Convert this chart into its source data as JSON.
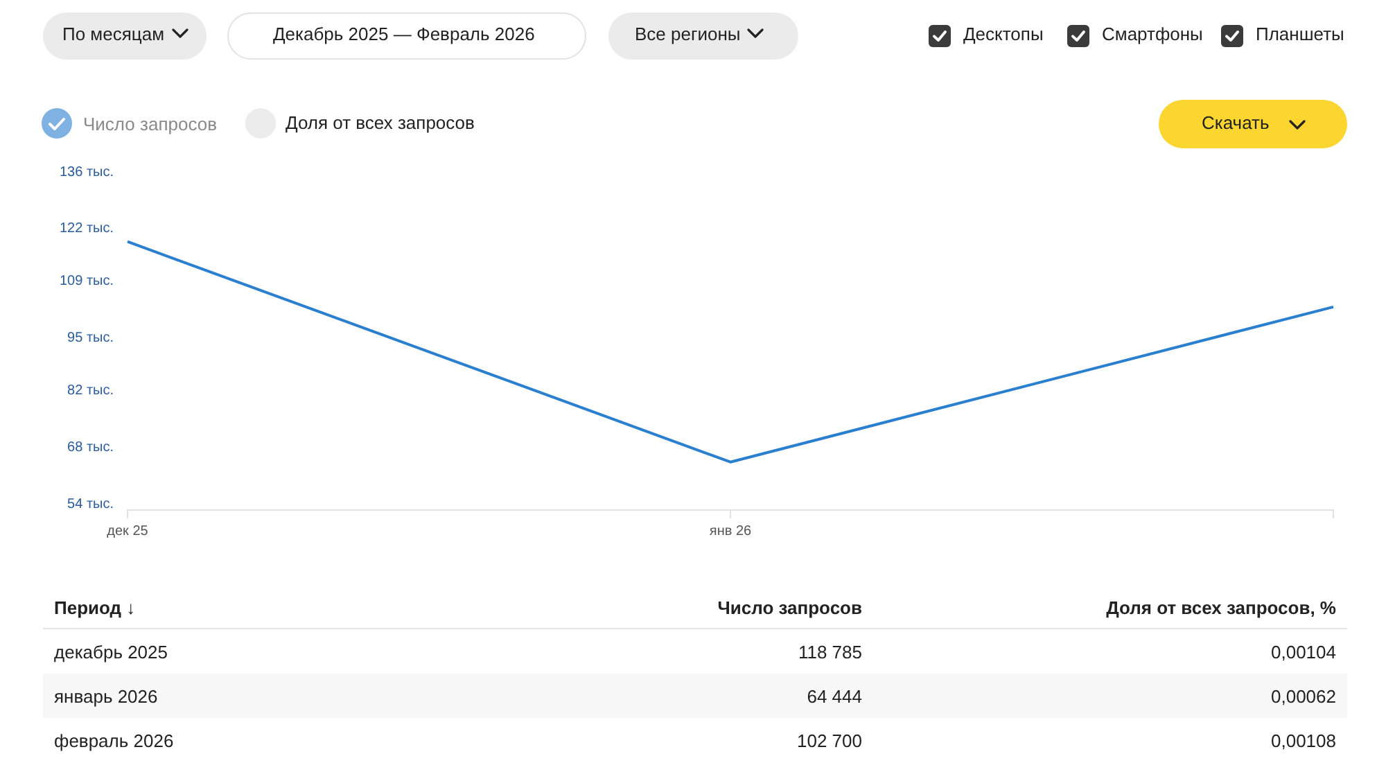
{
  "chart_data": {
    "type": "line",
    "categories": [
      "дек 25",
      "янв 26",
      null
    ],
    "series": [
      {
        "name": "Число запросов",
        "color": "#2b7fcf",
        "values": [
          118.785,
          64.444,
          102.7
        ]
      }
    ],
    "ylim": [
      52.6,
      136
    ],
    "yticks": [
      {
        "value": 54,
        "label": "54 тыс."
      },
      {
        "value": 68,
        "label": "68 тыс."
      },
      {
        "value": 82,
        "label": "82 тыс."
      },
      {
        "value": 95,
        "label": "95 тыс."
      },
      {
        "value": 109,
        "label": "109 тыс."
      },
      {
        "value": 122,
        "label": "122 тыс."
      },
      {
        "value": 136,
        "label": "136 тыс."
      }
    ],
    "grid": false,
    "legend": "top left",
    "marker": "none",
    "annotations": [
      "По месяцам",
      "Декабрь 2025 — Февраль 2026",
      "Все регионы",
      "Десктопы",
      "Смартфоны",
      "Планшеты",
      "Доля от всех запросов",
      "Скачать",
      "Период ↓",
      "Доля от всех запросов, %",
      "декабрь 2025",
      "январь 2026",
      "февраль 2026",
      "0,00104",
      "0,00062",
      "0,00108",
      "118 785",
      "64 444",
      "102 700"
    ]
  }
}
